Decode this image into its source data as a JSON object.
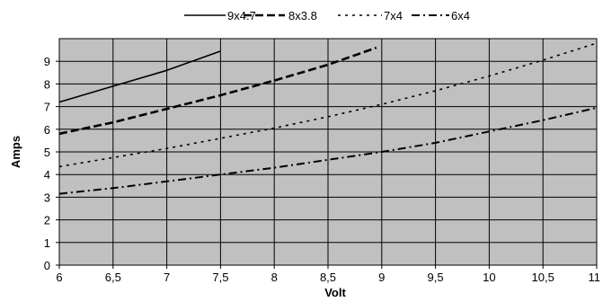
{
  "chart_data": {
    "type": "line",
    "title": "",
    "xlabel": "Volt",
    "ylabel": "Amps",
    "xlim": [
      6,
      11
    ],
    "ylim": [
      0,
      10
    ],
    "x_ticks": [
      6,
      6.5,
      7,
      7.5,
      8,
      8.5,
      9,
      9.5,
      10,
      10.5,
      11
    ],
    "x_tick_labels": [
      "6",
      "6,5",
      "7",
      "7,5",
      "8",
      "8,5",
      "9",
      "9,5",
      "10",
      "10,5",
      "11"
    ],
    "y_ticks": [
      0,
      1,
      2,
      3,
      4,
      5,
      6,
      7,
      8,
      9
    ],
    "y_tick_labels": [
      "0",
      "1",
      "2",
      "3",
      "4",
      "5",
      "6",
      "7",
      "8",
      "9"
    ],
    "grid": true,
    "legend_position": "top",
    "background_color": "#c0c0c0",
    "series": [
      {
        "name": "9x4.7",
        "style": "solid",
        "x": [
          6,
          6.5,
          7,
          7.5
        ],
        "y": [
          7.2,
          7.9,
          8.6,
          9.45
        ]
      },
      {
        "name": "8x3.8",
        "style": "dashed",
        "x": [
          6,
          6.5,
          7,
          7.5,
          8,
          8.5,
          8.95
        ],
        "y": [
          5.8,
          6.3,
          6.9,
          7.5,
          8.15,
          8.85,
          9.6
        ]
      },
      {
        "name": "7x4",
        "style": "dotted",
        "x": [
          6,
          6.5,
          7,
          7.5,
          8,
          8.5,
          9,
          9.5,
          10,
          10.5,
          11
        ],
        "y": [
          4.35,
          4.75,
          5.15,
          5.6,
          6.05,
          6.55,
          7.1,
          7.7,
          8.35,
          9.05,
          9.8
        ]
      },
      {
        "name": "6x4",
        "style": "dashdot",
        "x": [
          6,
          6.5,
          7,
          7.5,
          8,
          8.5,
          9,
          9.5,
          10,
          10.5,
          11
        ],
        "y": [
          3.15,
          3.4,
          3.7,
          4.0,
          4.3,
          4.65,
          5.0,
          5.4,
          5.9,
          6.4,
          6.95
        ]
      }
    ]
  }
}
